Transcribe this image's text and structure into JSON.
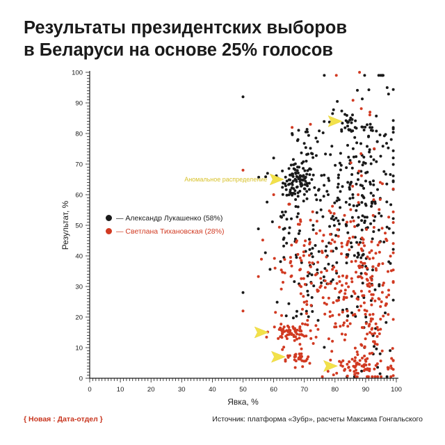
{
  "title_line1": "Результаты президентских выборов",
  "title_line2": "в Беларуси на основе 25% голосов",
  "footer": {
    "left": "{ Новая : Дата-отдел }",
    "right": "Источник: платформа «Зубр», расчеты Максима Гонгальского"
  },
  "colors": {
    "lukashenko": "#1a1a1a",
    "tikhanovskaya": "#d13a22",
    "arrow": "#f2e14a",
    "annotation": "#d8c22c"
  },
  "chart_data": {
    "type": "scatter",
    "xlabel": "Явка, %",
    "ylabel": "Результат, %",
    "xlim": [
      0,
      100
    ],
    "ylim": [
      0,
      100
    ],
    "xticks": [
      0,
      10,
      20,
      30,
      40,
      50,
      60,
      70,
      80,
      90,
      100
    ],
    "yticks": [
      0,
      10,
      20,
      30,
      40,
      50,
      60,
      70,
      80,
      90,
      100
    ],
    "legend_position": "left-middle",
    "series": [
      {
        "name": "— Александр Лукашенко (58%)",
        "color": "#1a1a1a",
        "clusters": [
          {
            "cx": 68,
            "cy": 64,
            "sx": 2.5,
            "sy": 3,
            "n": 90
          },
          {
            "cx": 85,
            "cy": 83,
            "sx": 1.5,
            "sy": 1.5,
            "n": 20
          },
          {
            "cx": 62,
            "cy": 55,
            "sx": 3,
            "sy": 10,
            "n": 30
          },
          {
            "cx": 72,
            "cy": 35,
            "sx": 5,
            "sy": 12,
            "n": 40
          },
          {
            "cx": 90,
            "cy": 70,
            "sx": 6,
            "sy": 14,
            "n": 110
          },
          {
            "cx": 80,
            "cy": 50,
            "sx": 8,
            "sy": 16,
            "n": 130
          },
          {
            "cx": 93,
            "cy": 45,
            "sx": 4,
            "sy": 25,
            "n": 80
          },
          {
            "cx": 70,
            "cy": 75,
            "sx": 3,
            "sy": 4,
            "n": 20
          }
        ],
        "extra_points": [
          [
            50,
            92
          ],
          [
            50,
            28
          ],
          [
            58,
            67
          ],
          [
            60,
            72
          ],
          [
            66,
            80
          ],
          [
            97,
            95
          ]
        ]
      },
      {
        "name": "— Светлана Тихановская (28%)",
        "color": "#d13a22",
        "clusters": [
          {
            "cx": 65,
            "cy": 15,
            "sx": 3,
            "sy": 1.2,
            "n": 60
          },
          {
            "cx": 68,
            "cy": 6,
            "sx": 2,
            "sy": 1.2,
            "n": 25
          },
          {
            "cx": 88,
            "cy": 4,
            "sx": 6,
            "sy": 1.8,
            "n": 55
          },
          {
            "cx": 80,
            "cy": 30,
            "sx": 9,
            "sy": 14,
            "n": 200
          },
          {
            "cx": 93,
            "cy": 20,
            "sx": 4,
            "sy": 15,
            "n": 90
          },
          {
            "cx": 68,
            "cy": 35,
            "sx": 4,
            "sy": 10,
            "n": 40
          },
          {
            "cx": 90,
            "cy": 55,
            "sx": 6,
            "sy": 20,
            "n": 40
          }
        ],
        "extra_points": [
          [
            50,
            22
          ],
          [
            50,
            68
          ],
          [
            88,
            100
          ],
          [
            60,
            60
          ],
          [
            66,
            82
          ],
          [
            72,
            83
          ]
        ]
      }
    ],
    "annotations": [
      {
        "label": "Аномальное распределение",
        "x": 61.5,
        "y": 65,
        "dir": "right"
      },
      {
        "label": "",
        "x": 80.5,
        "y": 84,
        "dir": "right"
      },
      {
        "label": "",
        "x": 56.5,
        "y": 15,
        "dir": "right"
      },
      {
        "label": "",
        "x": 62,
        "y": 7,
        "dir": "right"
      },
      {
        "label": "",
        "x": 79,
        "y": 4,
        "dir": "right"
      }
    ]
  }
}
